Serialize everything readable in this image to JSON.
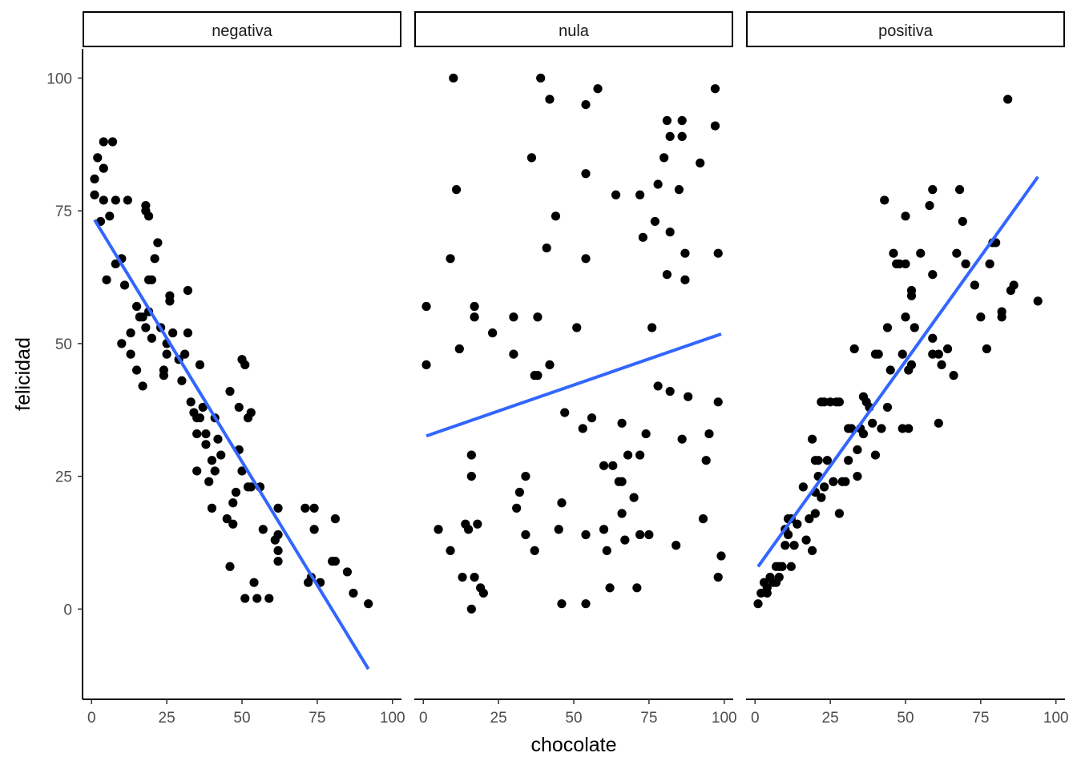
{
  "chart_data": {
    "type": "scatter",
    "facet_variable_values": [
      "negativa",
      "nula",
      "positiva"
    ],
    "xlabel": "chocolate",
    "ylabel": "felicidad",
    "xlim": [
      -3,
      103
    ],
    "ylim": [
      -17,
      105.5
    ],
    "x_ticks": [
      0,
      25,
      50,
      75,
      100
    ],
    "y_ticks": [
      0,
      25,
      50,
      75,
      100
    ],
    "grid": false,
    "point_color": "#000000",
    "line_color": "#3366ff",
    "panels": [
      {
        "name": "negativa",
        "points": [
          [
            1,
            81
          ],
          [
            1,
            78
          ],
          [
            2,
            85
          ],
          [
            3,
            73
          ],
          [
            4,
            88
          ],
          [
            4,
            83
          ],
          [
            4,
            77
          ],
          [
            5,
            62
          ],
          [
            6,
            74
          ],
          [
            7,
            88
          ],
          [
            8,
            65
          ],
          [
            8,
            77
          ],
          [
            10,
            66
          ],
          [
            10,
            50
          ],
          [
            11,
            61
          ],
          [
            12,
            77
          ],
          [
            13,
            52
          ],
          [
            13,
            48
          ],
          [
            15,
            57
          ],
          [
            15,
            45
          ],
          [
            16,
            55
          ],
          [
            17,
            55
          ],
          [
            17,
            42
          ],
          [
            18,
            76
          ],
          [
            18,
            75
          ],
          [
            18,
            53
          ],
          [
            19,
            74
          ],
          [
            19,
            62
          ],
          [
            19,
            56
          ],
          [
            20,
            62
          ],
          [
            20,
            51
          ],
          [
            21,
            66
          ],
          [
            22,
            69
          ],
          [
            23,
            53
          ],
          [
            24,
            45
          ],
          [
            24,
            44
          ],
          [
            25,
            50
          ],
          [
            25,
            48
          ],
          [
            26,
            59
          ],
          [
            26,
            58
          ],
          [
            27,
            52
          ],
          [
            29,
            47
          ],
          [
            30,
            43
          ],
          [
            31,
            48
          ],
          [
            32,
            52
          ],
          [
            32,
            60
          ],
          [
            33,
            39
          ],
          [
            34,
            37
          ],
          [
            35,
            36
          ],
          [
            35,
            33
          ],
          [
            35,
            26
          ],
          [
            36,
            36
          ],
          [
            36,
            46
          ],
          [
            37,
            38
          ],
          [
            38,
            33
          ],
          [
            38,
            31
          ],
          [
            39,
            24
          ],
          [
            40,
            19
          ],
          [
            40,
            28
          ],
          [
            41,
            36
          ],
          [
            41,
            26
          ],
          [
            42,
            32
          ],
          [
            43,
            29
          ],
          [
            45,
            17
          ],
          [
            46,
            41
          ],
          [
            46,
            8
          ],
          [
            47,
            16
          ],
          [
            47,
            20
          ],
          [
            48,
            22
          ],
          [
            49,
            38
          ],
          [
            49,
            30
          ],
          [
            50,
            47
          ],
          [
            50,
            26
          ],
          [
            51,
            2
          ],
          [
            51,
            46
          ],
          [
            52,
            23
          ],
          [
            52,
            36
          ],
          [
            53,
            37
          ],
          [
            53,
            23
          ],
          [
            54,
            5
          ],
          [
            55,
            2
          ],
          [
            56,
            23
          ],
          [
            57,
            15
          ],
          [
            59,
            2
          ],
          [
            61,
            13
          ],
          [
            62,
            19
          ],
          [
            62,
            11
          ],
          [
            62,
            9
          ],
          [
            62,
            14
          ],
          [
            71,
            19
          ],
          [
            72,
            5
          ],
          [
            73,
            6
          ],
          [
            74,
            19
          ],
          [
            74,
            15
          ],
          [
            76,
            5
          ],
          [
            80,
            9
          ],
          [
            81,
            9
          ],
          [
            81,
            17
          ],
          [
            85,
            7
          ],
          [
            87,
            3
          ],
          [
            92,
            1
          ]
        ],
        "fit": {
          "x": [
            1,
            92
          ],
          "y": [
            73.3,
            -11.3
          ]
        }
      },
      {
        "name": "nula",
        "points": [
          [
            1,
            57
          ],
          [
            1,
            46
          ],
          [
            5,
            15
          ],
          [
            9,
            11
          ],
          [
            9,
            66
          ],
          [
            10,
            100
          ],
          [
            11,
            79
          ],
          [
            12,
            49
          ],
          [
            13,
            6
          ],
          [
            14,
            16
          ],
          [
            15,
            15
          ],
          [
            16,
            0
          ],
          [
            16,
            29
          ],
          [
            16,
            25
          ],
          [
            17,
            6
          ],
          [
            17,
            57
          ],
          [
            17,
            55
          ],
          [
            18,
            16
          ],
          [
            19,
            4
          ],
          [
            20,
            3
          ],
          [
            23,
            52
          ],
          [
            30,
            55
          ],
          [
            30,
            48
          ],
          [
            31,
            19
          ],
          [
            32,
            22
          ],
          [
            34,
            14
          ],
          [
            34,
            25
          ],
          [
            36,
            85
          ],
          [
            37,
            11
          ],
          [
            37,
            44
          ],
          [
            38,
            44
          ],
          [
            38,
            55
          ],
          [
            39,
            100
          ],
          [
            42,
            46
          ],
          [
            42,
            96
          ],
          [
            44,
            74
          ],
          [
            45,
            15
          ],
          [
            46,
            20
          ],
          [
            46,
            1
          ],
          [
            47,
            37
          ],
          [
            41,
            68
          ],
          [
            51,
            53
          ],
          [
            53,
            34
          ],
          [
            54,
            1
          ],
          [
            54,
            14
          ],
          [
            54,
            95
          ],
          [
            54,
            82
          ],
          [
            54,
            66
          ],
          [
            56,
            36
          ],
          [
            58,
            98
          ],
          [
            60,
            27
          ],
          [
            60,
            15
          ],
          [
            61,
            11
          ],
          [
            62,
            4
          ],
          [
            63,
            27
          ],
          [
            64,
            78
          ],
          [
            65,
            24
          ],
          [
            66,
            24
          ],
          [
            66,
            18
          ],
          [
            66,
            35
          ],
          [
            67,
            13
          ],
          [
            68,
            29
          ],
          [
            70,
            21
          ],
          [
            71,
            4
          ],
          [
            72,
            78
          ],
          [
            72,
            29
          ],
          [
            72,
            14
          ],
          [
            73,
            70
          ],
          [
            74,
            33
          ],
          [
            75,
            14
          ],
          [
            76,
            53
          ],
          [
            77,
            73
          ],
          [
            78,
            80
          ],
          [
            78,
            42
          ],
          [
            80,
            85
          ],
          [
            81,
            92
          ],
          [
            81,
            63
          ],
          [
            82,
            71
          ],
          [
            82,
            89
          ],
          [
            82,
            41
          ],
          [
            84,
            12
          ],
          [
            85,
            79
          ],
          [
            86,
            92
          ],
          [
            86,
            89
          ],
          [
            86,
            32
          ],
          [
            87,
            67
          ],
          [
            87,
            62
          ],
          [
            88,
            40
          ],
          [
            92,
            84
          ],
          [
            93,
            17
          ],
          [
            94,
            28
          ],
          [
            95,
            33
          ],
          [
            97,
            91
          ],
          [
            97,
            98
          ],
          [
            98,
            67
          ],
          [
            98,
            39
          ],
          [
            98,
            6
          ],
          [
            99,
            10
          ]
        ],
        "fit": {
          "x": [
            1,
            99
          ],
          "y": [
            32.6,
            51.8
          ]
        }
      },
      {
        "name": "positiva",
        "points": [
          [
            1,
            1
          ],
          [
            2,
            3
          ],
          [
            3,
            5
          ],
          [
            4,
            4
          ],
          [
            4,
            3
          ],
          [
            5,
            6
          ],
          [
            6,
            5
          ],
          [
            7,
            8
          ],
          [
            7,
            5
          ],
          [
            8,
            8
          ],
          [
            8,
            6
          ],
          [
            9,
            8
          ],
          [
            10,
            12
          ],
          [
            10,
            15
          ],
          [
            11,
            14
          ],
          [
            11,
            17
          ],
          [
            12,
            17
          ],
          [
            12,
            8
          ],
          [
            13,
            12
          ],
          [
            14,
            16
          ],
          [
            16,
            23
          ],
          [
            17,
            13
          ],
          [
            18,
            17
          ],
          [
            19,
            32
          ],
          [
            19,
            11
          ],
          [
            20,
            28
          ],
          [
            20,
            22
          ],
          [
            20,
            18
          ],
          [
            21,
            28
          ],
          [
            21,
            25
          ],
          [
            22,
            39
          ],
          [
            22,
            21
          ],
          [
            23,
            23
          ],
          [
            23,
            39
          ],
          [
            24,
            28
          ],
          [
            25,
            39
          ],
          [
            26,
            24
          ],
          [
            27,
            39
          ],
          [
            28,
            39
          ],
          [
            28,
            18
          ],
          [
            29,
            24
          ],
          [
            30,
            24
          ],
          [
            31,
            28
          ],
          [
            31,
            34
          ],
          [
            32,
            34
          ],
          [
            33,
            49
          ],
          [
            34,
            30
          ],
          [
            34,
            25
          ],
          [
            35,
            34
          ],
          [
            36,
            40
          ],
          [
            36,
            33
          ],
          [
            37,
            39
          ],
          [
            38,
            38
          ],
          [
            39,
            35
          ],
          [
            40,
            48
          ],
          [
            40,
            29
          ],
          [
            41,
            48
          ],
          [
            42,
            34
          ],
          [
            43,
            77
          ],
          [
            44,
            38
          ],
          [
            44,
            53
          ],
          [
            45,
            45
          ],
          [
            46,
            67
          ],
          [
            47,
            65
          ],
          [
            48,
            65
          ],
          [
            49,
            34
          ],
          [
            49,
            48
          ],
          [
            50,
            65
          ],
          [
            50,
            74
          ],
          [
            50,
            55
          ],
          [
            51,
            34
          ],
          [
            51,
            45
          ],
          [
            52,
            59
          ],
          [
            52,
            60
          ],
          [
            52,
            46
          ],
          [
            53,
            53
          ],
          [
            55,
            67
          ],
          [
            58,
            76
          ],
          [
            59,
            79
          ],
          [
            59,
            63
          ],
          [
            59,
            51
          ],
          [
            59,
            48
          ],
          [
            61,
            35
          ],
          [
            61,
            48
          ],
          [
            62,
            46
          ],
          [
            64,
            49
          ],
          [
            66,
            44
          ],
          [
            67,
            67
          ],
          [
            68,
            79
          ],
          [
            69,
            73
          ],
          [
            70,
            65
          ],
          [
            73,
            61
          ],
          [
            75,
            55
          ],
          [
            77,
            49
          ],
          [
            78,
            65
          ],
          [
            79,
            69
          ],
          [
            80,
            69
          ],
          [
            82,
            55
          ],
          [
            82,
            56
          ],
          [
            84,
            96
          ],
          [
            85,
            60
          ],
          [
            86,
            61
          ],
          [
            94,
            58
          ]
        ],
        "fit": {
          "x": [
            1,
            94
          ],
          "y": [
            8.0,
            81.4
          ]
        }
      }
    ]
  }
}
